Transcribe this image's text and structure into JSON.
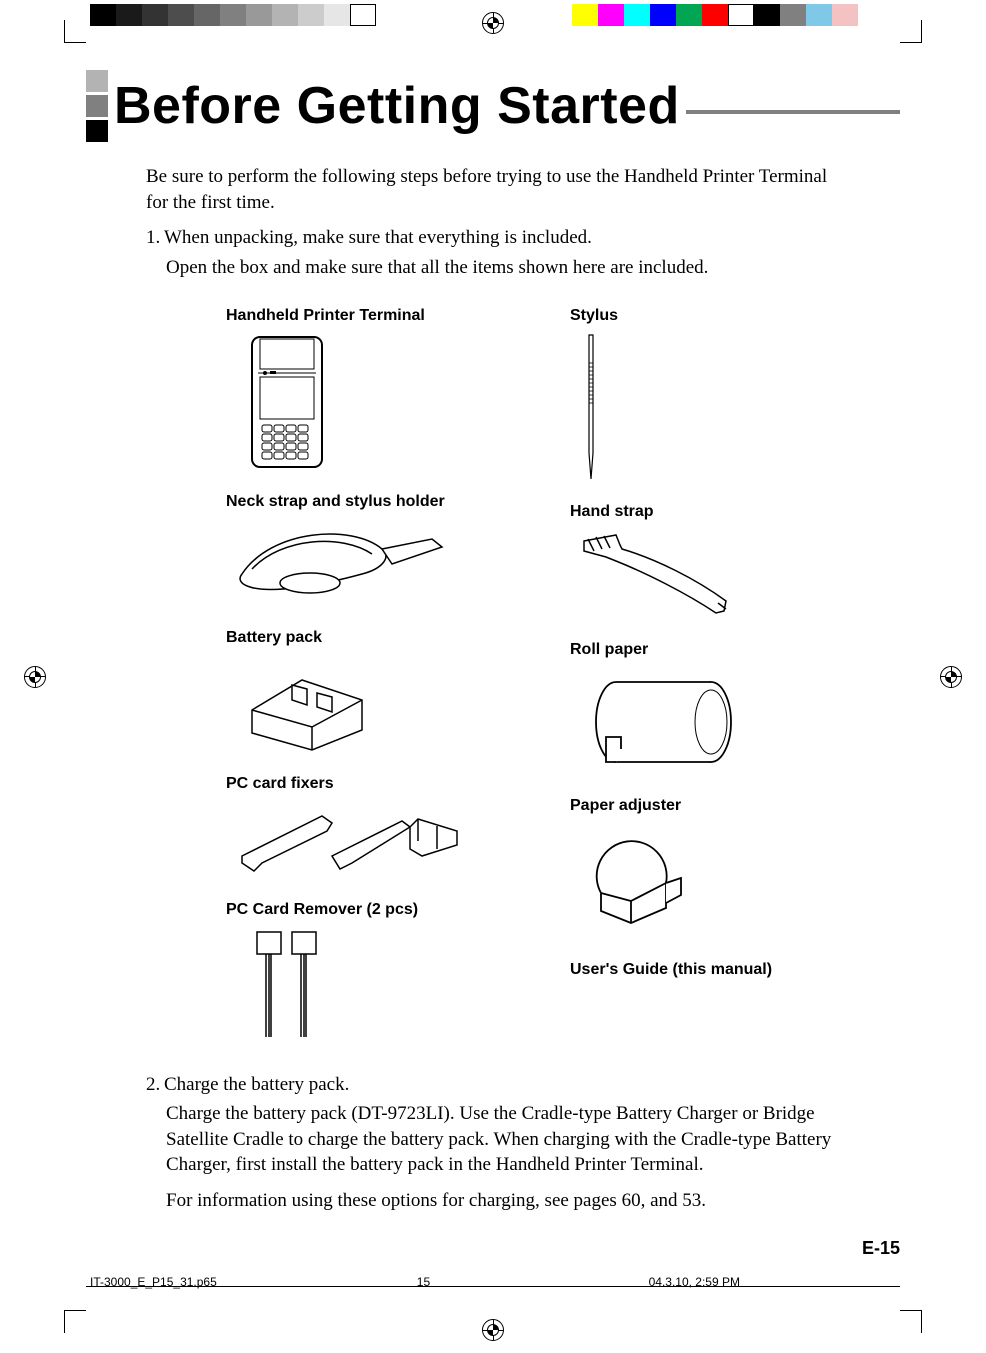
{
  "print_marks": {
    "top_grayscale_steps": [
      "#000000",
      "#1a1a1a",
      "#333333",
      "#4d4d4d",
      "#666666",
      "#808080",
      "#999999",
      "#b3b3b3",
      "#cccccc",
      "#e6e6e6",
      "#ffffff"
    ],
    "top_color_swatches_right": [
      "#ffff00",
      "#ff00ff",
      "#00ffff",
      "#0000ff",
      "#00a651",
      "#ff0000",
      "#ffffff",
      "#000000",
      "#808080",
      "#80c8e8",
      "#f4c2c2"
    ]
  },
  "heading": "Before Getting Started",
  "intro": "Be sure to perform the following steps before trying to use the Handheld Printer Terminal for the first time.",
  "step1_num": "1.",
  "step1_text": "When unpacking, make sure that everything is included.",
  "step1_sub": "Open the box and make sure that all the items shown here are included.",
  "items": {
    "left": [
      {
        "label": "Handheld Printer Terminal"
      },
      {
        "label": "Neck strap and stylus holder"
      },
      {
        "label": "Battery pack"
      },
      {
        "label": "PC card fixers"
      },
      {
        "label": "PC Card Remover (2 pcs)"
      }
    ],
    "right": [
      {
        "label": "Stylus"
      },
      {
        "label": "Hand strap"
      },
      {
        "label": "Roll paper"
      },
      {
        "label": "Paper adjuster"
      },
      {
        "label": "User's Guide (this manual)"
      }
    ]
  },
  "step2_num": "2.",
  "step2_text": "Charge the battery pack.",
  "step2_para1": "Charge the battery pack (DT-9723LI).  Use the Cradle-type Battery Charger or Bridge Satellite Cradle to charge the battery pack.  When charging with the Cradle-type Battery Charger, first install the battery pack in the Handheld Printer Terminal.",
  "step2_para2": "For information using these options for charging, see pages 60, and 53.",
  "page_number": "E-15",
  "slug": {
    "file": "IT-3000_E_P15_31.p65",
    "page": "15",
    "datetime": "04.3.10, 2:59 PM"
  },
  "colors": {
    "heading_marker_light": "#b3b3b3",
    "heading_marker_mid": "#808080",
    "heading_marker_dark": "#000000",
    "heading_rule": "#808080"
  }
}
